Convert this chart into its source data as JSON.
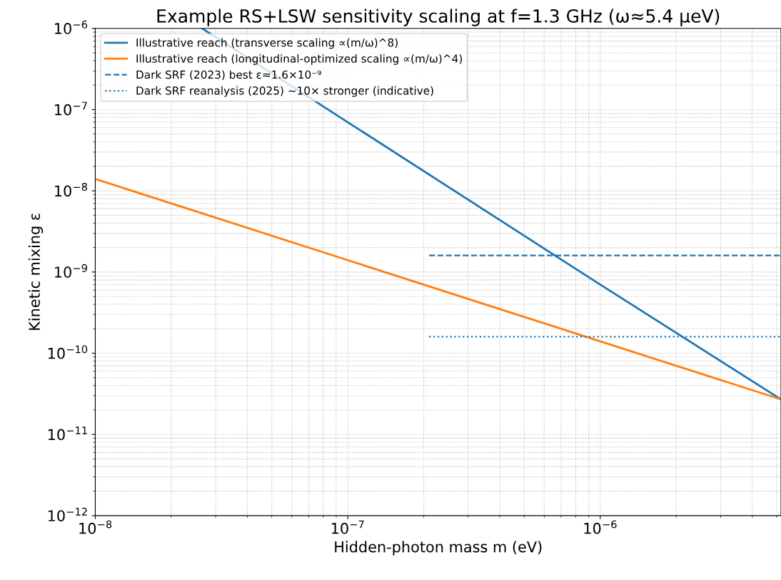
{
  "chart_data": {
    "type": "line",
    "title": "Example RS+LSW sensitivity scaling at f=1.3 GHz (ω≈5.4 μeV)",
    "xlabel": "Hidden-photon mass m (eV)",
    "ylabel": "Kinetic mixing ε",
    "log": "xy",
    "xlim": [
      1e-08,
      5.2e-06
    ],
    "ylim": [
      1e-12,
      1e-06
    ],
    "xticks": [
      {
        "value": 1e-08,
        "label": "10$^{−8}$"
      },
      {
        "value": 1e-07,
        "label": "10$^{−7}$"
      },
      {
        "value": 1e-06,
        "label": "10$^{−6}$"
      }
    ],
    "yticks": [
      {
        "value": 1e-12,
        "label": "10$^{−12}$"
      },
      {
        "value": 1e-11,
        "label": "10$^{−11}$"
      },
      {
        "value": 1e-10,
        "label": "10$^{−10}$"
      },
      {
        "value": 1e-09,
        "label": "10$^{−9}$"
      },
      {
        "value": 1e-08,
        "label": "10$^{−8}$"
      },
      {
        "value": 1e-07,
        "label": "10$^{−7}$"
      },
      {
        "value": 1e-06,
        "label": "10$^{−6}$"
      }
    ],
    "grid": true,
    "legend": "top left",
    "series": [
      {
        "name": "Illustrative reach (transverse scaling ∝(m/ω)^8)",
        "color": "#1f77b4",
        "x": [
          2.65e-08,
          1e-07,
          1e-06,
          5.2e-06
        ],
        "values": [
          1e-06,
          7e-08,
          7e-10,
          2.7e-11
        ],
        "line_style": "solid"
      },
      {
        "name": "Illustrative reach (longitudinal-optimized scaling ∝(m/ω)^4)",
        "color": "#ff7f0e",
        "x": [
          1e-08,
          1e-07,
          1e-06,
          5.2e-06
        ],
        "values": [
          1.4e-08,
          1.4e-09,
          1.4e-10,
          2.7e-11
        ],
        "line_style": "solid"
      },
      {
        "name": "Dark SRF (2023) best ε≈1.6×10⁻⁹",
        "color": "#1f77b4",
        "x": [
          2.1e-07,
          5.2e-06
        ],
        "values": [
          1.6e-09,
          1.6e-09
        ],
        "line_style": "dashed"
      },
      {
        "name": "Dark SRF reanalysis (2025) ~10× stronger (indicative)",
        "color": "#1f77b4",
        "x": [
          2.1e-07,
          5.2e-06
        ],
        "values": [
          1.6e-10,
          1.6e-10
        ],
        "line_style": "dotted"
      }
    ]
  }
}
